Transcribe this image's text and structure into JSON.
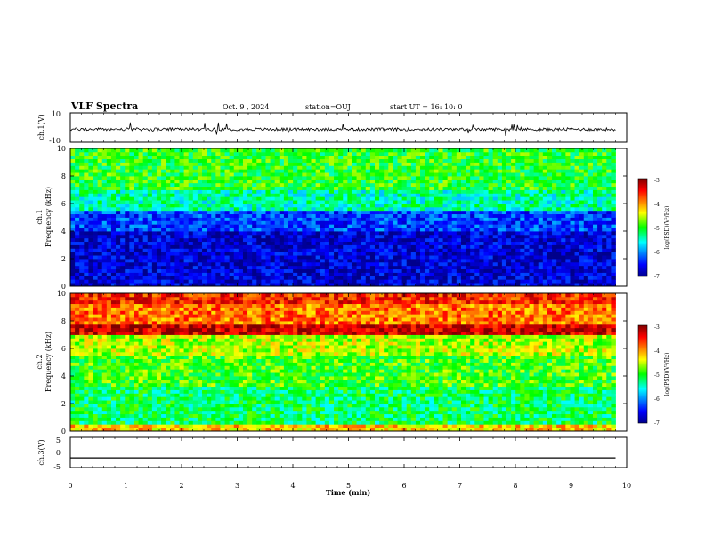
{
  "header": {
    "title": "VLF Spectra",
    "date": "Oct. 9 , 2024",
    "station": "station=OUJ",
    "start_ut": "start UT =  16: 10: 0"
  },
  "chart_data": [
    {
      "id": "ch1-waveform",
      "type": "line",
      "ylabel": "ch.1(V)",
      "ylim": [
        -10,
        10
      ],
      "yticks": [
        "10",
        "-10"
      ],
      "xlim": [
        0,
        10
      ],
      "description_level": "noise waveform around -1 to -2 V with spikes",
      "baseline_v": -1.2,
      "amplitude_v": 2.0
    },
    {
      "id": "ch1-spectrogram",
      "type": "heatmap",
      "ylabel": "ch.1",
      "ylabel2": "Frequency (kHz)",
      "ylim": [
        0,
        10
      ],
      "yticks": [
        "0",
        "2",
        "4",
        "6",
        "8",
        "10"
      ],
      "xlim": [
        0,
        10
      ],
      "data_extent_min": 9.8,
      "colorbar": {
        "label": "log(PSD)(V²/Hz)",
        "range": [
          -7,
          -3
        ],
        "ticks": [
          "-3",
          "-4",
          "-5",
          "-6",
          "-7"
        ]
      },
      "bands_log_psd": [
        {
          "f": [
            0,
            4
          ],
          "value": -6.7
        },
        {
          "f": [
            4,
            5.5
          ],
          "value": -6.3
        },
        {
          "f": [
            5.5,
            7
          ],
          "value": -5.4
        },
        {
          "f": [
            7,
            10
          ],
          "value": -5.0
        }
      ]
    },
    {
      "id": "ch2-spectrogram",
      "type": "heatmap",
      "ylabel": "ch.2",
      "ylabel2": "Frequency (kHz)",
      "ylim": [
        0,
        10
      ],
      "yticks": [
        "0",
        "2",
        "4",
        "6",
        "8",
        "10"
      ],
      "xlim": [
        0,
        10
      ],
      "data_extent_min": 9.8,
      "colorbar": {
        "label": "log(PSD)(V²/Hz)",
        "range": [
          -7,
          -3
        ],
        "ticks": [
          "-3",
          "-4",
          "-5",
          "-6",
          "-7"
        ]
      },
      "bands_log_psd": [
        {
          "f": [
            0,
            0.4
          ],
          "value": -4.2
        },
        {
          "f": [
            0.4,
            3.2
          ],
          "value": -5.2
        },
        {
          "f": [
            3.2,
            5.6
          ],
          "value": -4.9
        },
        {
          "f": [
            5.6,
            7.0
          ],
          "value": -4.6
        },
        {
          "f": [
            7.0,
            7.8
          ],
          "value": -3.3
        },
        {
          "f": [
            7.8,
            9.2
          ],
          "value": -3.9
        },
        {
          "f": [
            9.2,
            10
          ],
          "value": -3.6
        }
      ]
    },
    {
      "id": "ch3-waveform",
      "type": "line",
      "ylabel": "ch.3(V)",
      "ylim": [
        -5,
        5
      ],
      "yticks": [
        "5",
        "0",
        "-5"
      ],
      "xlim": [
        0,
        10
      ],
      "constant_v": -1.8
    }
  ],
  "xaxis": {
    "label": "Time (min)",
    "ticks": [
      "0",
      "1",
      "2",
      "3",
      "4",
      "5",
      "6",
      "7",
      "8",
      "9",
      "10"
    ]
  },
  "colors": {
    "colormap": [
      "#00008b",
      "#0000ff",
      "#00ffff",
      "#00ff00",
      "#ffff00",
      "#ff0000",
      "#7f0000"
    ]
  }
}
